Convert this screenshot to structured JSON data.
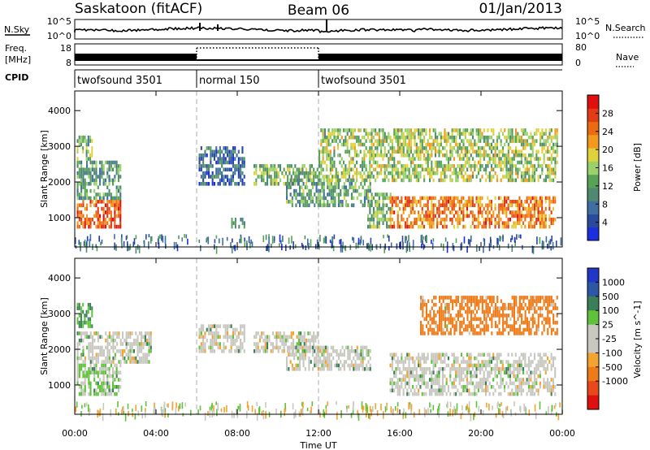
{
  "header": {
    "station": "Saskatoon (fitACF)",
    "beam": "Beam 06",
    "date": "01/Jan/2013"
  },
  "strips": {
    "nsky_label": "N.Sky",
    "nsky_top": "10^5",
    "nsky_bottom": "10^0",
    "nsky_right_top": "10^5",
    "nsky_right_bottom": "10^0",
    "nsearch_label": "N.Search",
    "freq_label": "Freq.",
    "freq_unit": "[MHz]",
    "freq_top": "18",
    "freq_bottom": "8",
    "nave_top": "80",
    "nave_bottom": "0",
    "nave_label": "Nave",
    "cpid_label": "CPID"
  },
  "cpid_segments": [
    {
      "name": "twofsound 3501",
      "start_h": 0,
      "end_h": 6
    },
    {
      "name": "normal 150",
      "start_h": 6,
      "end_h": 12
    },
    {
      "name": "twofsound 3501",
      "start_h": 12,
      "end_h": 24
    }
  ],
  "colors": {
    "power_scale": [
      "#1a2fe0",
      "#2a4a9e",
      "#3f6fa0",
      "#4f8a70",
      "#57a257",
      "#9bd16a",
      "#e0d23a",
      "#f39a1e",
      "#ec6a12",
      "#e23c14",
      "#e01010"
    ],
    "velocity_scale": [
      "#2037c8",
      "#2c56a6",
      "#3a7f58",
      "#5fc23a",
      "#c8c8c0",
      "#c8c8c0",
      "#f2a330",
      "#ef7a18",
      "#e8481a",
      "#e01010"
    ]
  },
  "chart_data": [
    {
      "type": "heatmap",
      "name": "power",
      "x_tick_labels": [
        "00:00",
        "04:00",
        "08:00",
        "12:00",
        "16:00",
        "20:00",
        "00:00"
      ],
      "xlim": [
        0,
        24
      ],
      "ylabel": "Slant Range [km]",
      "y_ticks": [
        1000,
        2000,
        3000,
        4000
      ],
      "ylim": [
        180,
        4550
      ],
      "colorbar": {
        "label": "Power [dB]",
        "ticks": [
          4,
          8,
          12,
          16,
          20,
          24,
          28
        ],
        "range": [
          0,
          32
        ]
      },
      "regions": [
        {
          "t": [
            0.1,
            2.3
          ],
          "r": [
            700,
            1500
          ],
          "level": 27
        },
        {
          "t": [
            0.1,
            2.3
          ],
          "r": [
            1500,
            2600
          ],
          "level": 11
        },
        {
          "t": [
            0.1,
            0.9
          ],
          "r": [
            2600,
            3300
          ],
          "level": 13
        },
        {
          "t": [
            6.1,
            8.4
          ],
          "r": [
            1900,
            3000
          ],
          "level": 6
        },
        {
          "t": [
            7.7,
            8.4
          ],
          "r": [
            700,
            1000
          ],
          "level": 9
        },
        {
          "t": [
            8.8,
            12.0
          ],
          "r": [
            1900,
            2500
          ],
          "level": 14
        },
        {
          "t": [
            10.4,
            14.6
          ],
          "r": [
            1300,
            2100
          ],
          "level": 12
        },
        {
          "t": [
            14.4,
            15.6
          ],
          "r": [
            700,
            1700
          ],
          "level": 14
        },
        {
          "t": [
            12.0,
            23.8
          ],
          "r": [
            2000,
            3500
          ],
          "level": 16
        },
        {
          "t": [
            15.5,
            23.7
          ],
          "r": [
            700,
            1600
          ],
          "level": 25
        }
      ]
    },
    {
      "type": "heatmap",
      "name": "velocity",
      "x_tick_labels": [
        "00:00",
        "04:00",
        "08:00",
        "12:00",
        "16:00",
        "20:00",
        "00:00"
      ],
      "xlim": [
        0,
        24
      ],
      "xlabel": "Time UT",
      "ylabel": "Slant Range [km]",
      "y_ticks": [
        1000,
        2000,
        3000,
        4000
      ],
      "ylim": [
        180,
        4550
      ],
      "colorbar": {
        "label": "Velocity [m s^-1]",
        "ticks": [
          "1000",
          "500",
          "100",
          "25",
          "-25",
          "-100",
          "-500",
          "-1000"
        ]
      },
      "regions": [
        {
          "t": [
            0.1,
            2.3
          ],
          "r": [
            700,
            1600
          ],
          "level": 30
        },
        {
          "t": [
            0.1,
            3.8
          ],
          "r": [
            1600,
            2500
          ],
          "level": 0
        },
        {
          "t": [
            0.1,
            0.9
          ],
          "r": [
            2600,
            3300
          ],
          "level": 60
        },
        {
          "t": [
            6.1,
            8.4
          ],
          "r": [
            1900,
            2700
          ],
          "level": 0
        },
        {
          "t": [
            8.8,
            12.0
          ],
          "r": [
            1900,
            2500
          ],
          "level": 0
        },
        {
          "t": [
            10.4,
            14.6
          ],
          "r": [
            1400,
            2100
          ],
          "level": 0
        },
        {
          "t": [
            15.5,
            23.7
          ],
          "r": [
            700,
            1900
          ],
          "level": 0
        },
        {
          "t": [
            17.0,
            23.8
          ],
          "r": [
            2400,
            3500
          ],
          "level": -150
        }
      ]
    }
  ]
}
